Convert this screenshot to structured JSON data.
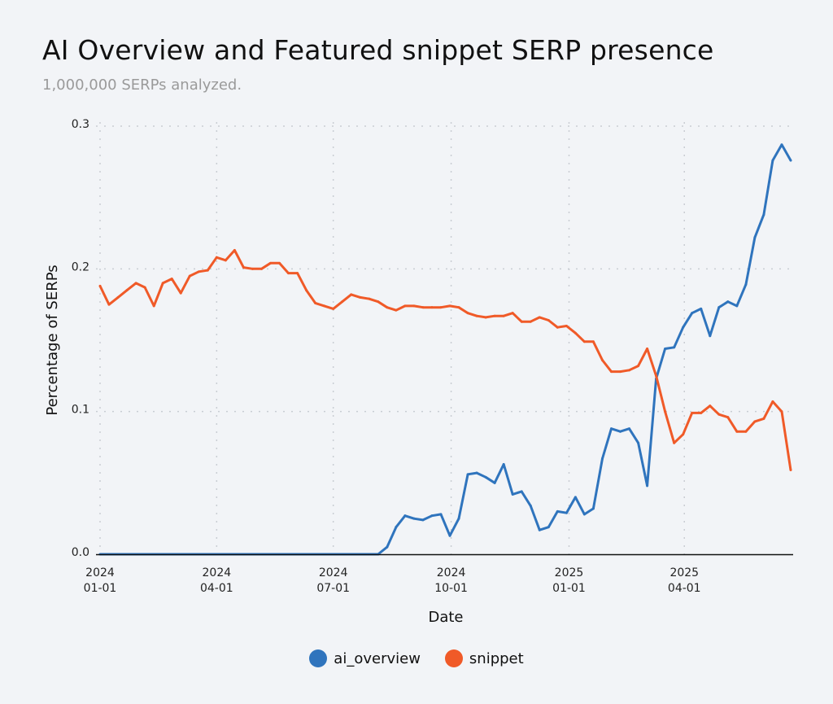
{
  "chart_data": {
    "type": "line",
    "title": "AI Overview and Featured snippet SERP presence",
    "subtitle": "1,000,000 SERPs analyzed.",
    "xlabel": "Date",
    "ylabel": "Percentage of SERPs",
    "ylim": [
      0,
      0.3
    ],
    "xlim": [
      "2024-01-01",
      "2025-06-23"
    ],
    "grid": true,
    "legend": "bottom",
    "y_ticks": [
      "0.0",
      "0.1",
      "0.2",
      "0.3"
    ],
    "y_tick_values": [
      0,
      0.1,
      0.2,
      0.3
    ],
    "x_ticks": [
      {
        "date": "2024-01-01",
        "year": "2024",
        "md": "01-01"
      },
      {
        "date": "2024-04-01",
        "year": "2024",
        "md": "04-01"
      },
      {
        "date": "2024-07-01",
        "year": "2024",
        "md": "07-01"
      },
      {
        "date": "2024-10-01",
        "year": "2024",
        "md": "10-01"
      },
      {
        "date": "2025-01-01",
        "year": "2025",
        "md": "01-01"
      },
      {
        "date": "2025-04-01",
        "year": "2025",
        "md": "04-01"
      }
    ],
    "x": [
      "2024-01-01",
      "2024-01-08",
      "2024-01-15",
      "2024-01-22",
      "2024-01-29",
      "2024-02-05",
      "2024-02-12",
      "2024-02-19",
      "2024-02-26",
      "2024-03-04",
      "2024-03-11",
      "2024-03-18",
      "2024-03-25",
      "2024-04-01",
      "2024-04-08",
      "2024-04-15",
      "2024-04-22",
      "2024-04-29",
      "2024-05-06",
      "2024-05-13",
      "2024-05-20",
      "2024-05-27",
      "2024-06-03",
      "2024-06-10",
      "2024-06-17",
      "2024-06-24",
      "2024-07-01",
      "2024-07-08",
      "2024-07-15",
      "2024-07-22",
      "2024-07-29",
      "2024-08-05",
      "2024-08-12",
      "2024-08-19",
      "2024-08-26",
      "2024-09-02",
      "2024-09-09",
      "2024-09-16",
      "2024-09-23",
      "2024-09-30",
      "2024-10-07",
      "2024-10-14",
      "2024-10-21",
      "2024-10-28",
      "2024-11-04",
      "2024-11-11",
      "2024-11-18",
      "2024-11-25",
      "2024-12-02",
      "2024-12-09",
      "2024-12-16",
      "2024-12-23",
      "2024-12-30",
      "2025-01-06",
      "2025-01-13",
      "2025-01-20",
      "2025-01-27",
      "2025-02-03",
      "2025-02-10",
      "2025-02-17",
      "2025-02-24",
      "2025-03-03",
      "2025-03-10",
      "2025-03-17",
      "2025-03-24",
      "2025-03-31",
      "2025-04-07",
      "2025-04-14",
      "2025-04-21",
      "2025-04-28",
      "2025-05-05",
      "2025-05-12",
      "2025-05-19",
      "2025-05-26",
      "2025-06-02",
      "2025-06-09",
      "2025-06-16",
      "2025-06-23"
    ],
    "series": [
      {
        "name": "ai_overview",
        "color": "#2f74bd",
        "values": [
          0,
          0,
          0,
          0,
          0,
          0,
          0,
          0,
          0,
          0,
          0,
          0,
          0,
          0,
          0,
          0,
          0,
          0,
          0,
          0,
          0,
          0,
          0,
          0,
          0,
          0,
          0,
          0,
          0,
          0,
          0,
          0,
          0.005,
          0.019,
          0.027,
          0.025,
          0.024,
          0.027,
          0.028,
          0.013,
          0.025,
          0.056,
          0.057,
          0.054,
          0.05,
          0.063,
          0.042,
          0.044,
          0.034,
          0.017,
          0.019,
          0.03,
          0.029,
          0.04,
          0.028,
          0.032,
          0.067,
          0.088,
          0.086,
          0.088,
          0.078,
          0.048,
          0.123,
          0.144,
          0.145,
          0.159,
          0.169,
          0.172,
          0.153,
          0.173,
          0.177,
          0.174,
          0.189,
          0.222,
          0.238,
          0.276,
          0.287,
          0.276
        ]
      },
      {
        "name": "snippet",
        "color": "#f05a28",
        "values": [
          0.188,
          0.175,
          0.18,
          0.185,
          0.19,
          0.187,
          0.174,
          0.19,
          0.193,
          0.183,
          0.195,
          0.198,
          0.199,
          0.208,
          0.206,
          0.213,
          0.201,
          0.2,
          0.2,
          0.204,
          0.204,
          0.197,
          0.197,
          0.185,
          0.176,
          0.174,
          0.172,
          0.177,
          0.182,
          0.18,
          0.179,
          0.177,
          0.173,
          0.171,
          0.174,
          0.174,
          0.173,
          0.173,
          0.173,
          0.174,
          0.173,
          0.169,
          0.167,
          0.166,
          0.167,
          0.167,
          0.169,
          0.163,
          0.163,
          0.166,
          0.164,
          0.159,
          0.16,
          0.155,
          0.149,
          0.149,
          0.136,
          0.128,
          0.128,
          0.129,
          0.132,
          0.144,
          0.125,
          0.1,
          0.078,
          0.084,
          0.099,
          0.099,
          0.104,
          0.098,
          0.096,
          0.086,
          0.086,
          0.093,
          0.095,
          0.107,
          0.1,
          0.059
        ]
      }
    ]
  }
}
